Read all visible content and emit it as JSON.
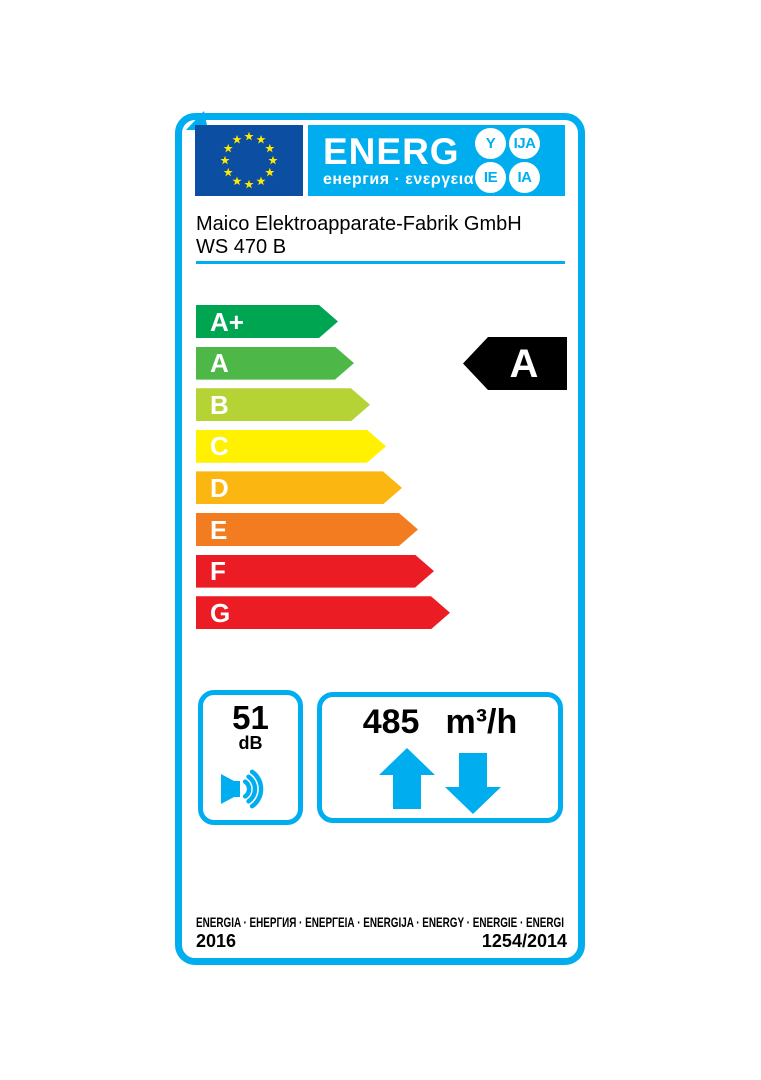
{
  "header": {
    "logo_text": "ENERG",
    "logo_subtext": "енергия · ενεργεια",
    "suffixes": [
      "Y",
      "IJA",
      "IE",
      "IA"
    ]
  },
  "supplier": {
    "name": "Maico Elektroapparate-Fabrik GmbH",
    "model": "WS 470 B"
  },
  "scale": {
    "classes": [
      {
        "label": "A+",
        "color": "#00a551"
      },
      {
        "label": "A",
        "color": "#4db848"
      },
      {
        "label": "B",
        "color": "#b5d335"
      },
      {
        "label": "C",
        "color": "#fff100"
      },
      {
        "label": "D",
        "color": "#fbb612"
      },
      {
        "label": "E",
        "color": "#f47c20"
      },
      {
        "label": "F",
        "color": "#ec1c24"
      },
      {
        "label": "G",
        "color": "#ec1c24"
      }
    ],
    "rating": "A",
    "rating_row_index": 1
  },
  "noise": {
    "value": "51",
    "unit": "dB"
  },
  "airflow": {
    "value": "485",
    "unit": "m³/h"
  },
  "footer": {
    "languages": "ENERGIA · ЕНЕРГИЯ · ΕΝΕΡΓΕΙΑ · ENERGIJA · ENERGY · ENERGIE · ENERGI",
    "year": "2016",
    "regulation": "1254/2014"
  },
  "colors": {
    "accent": "#00aeef",
    "eu_blue": "#0b4ea2",
    "star_yellow": "#ffe800",
    "indicator_black": "#000000"
  }
}
